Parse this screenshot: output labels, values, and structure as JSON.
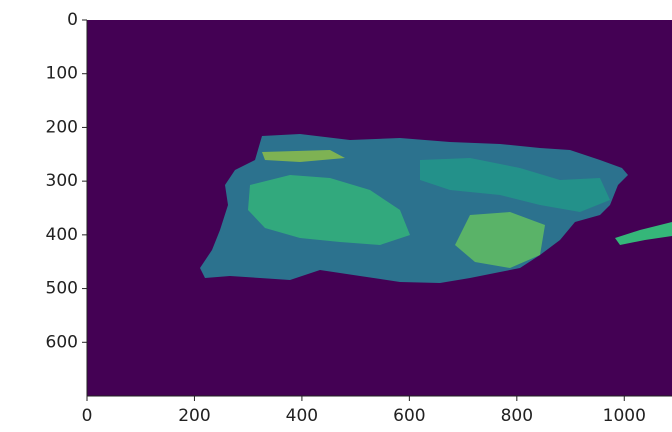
{
  "chart_data": {
    "type": "image",
    "xlim": [
      0,
      1100
    ],
    "ylim": [
      700,
      0
    ],
    "xticks": [
      0,
      200,
      400,
      600,
      800,
      1000
    ],
    "yticks": [
      0,
      100,
      200,
      300,
      400,
      500,
      600
    ],
    "background": "#440154"
  }
}
